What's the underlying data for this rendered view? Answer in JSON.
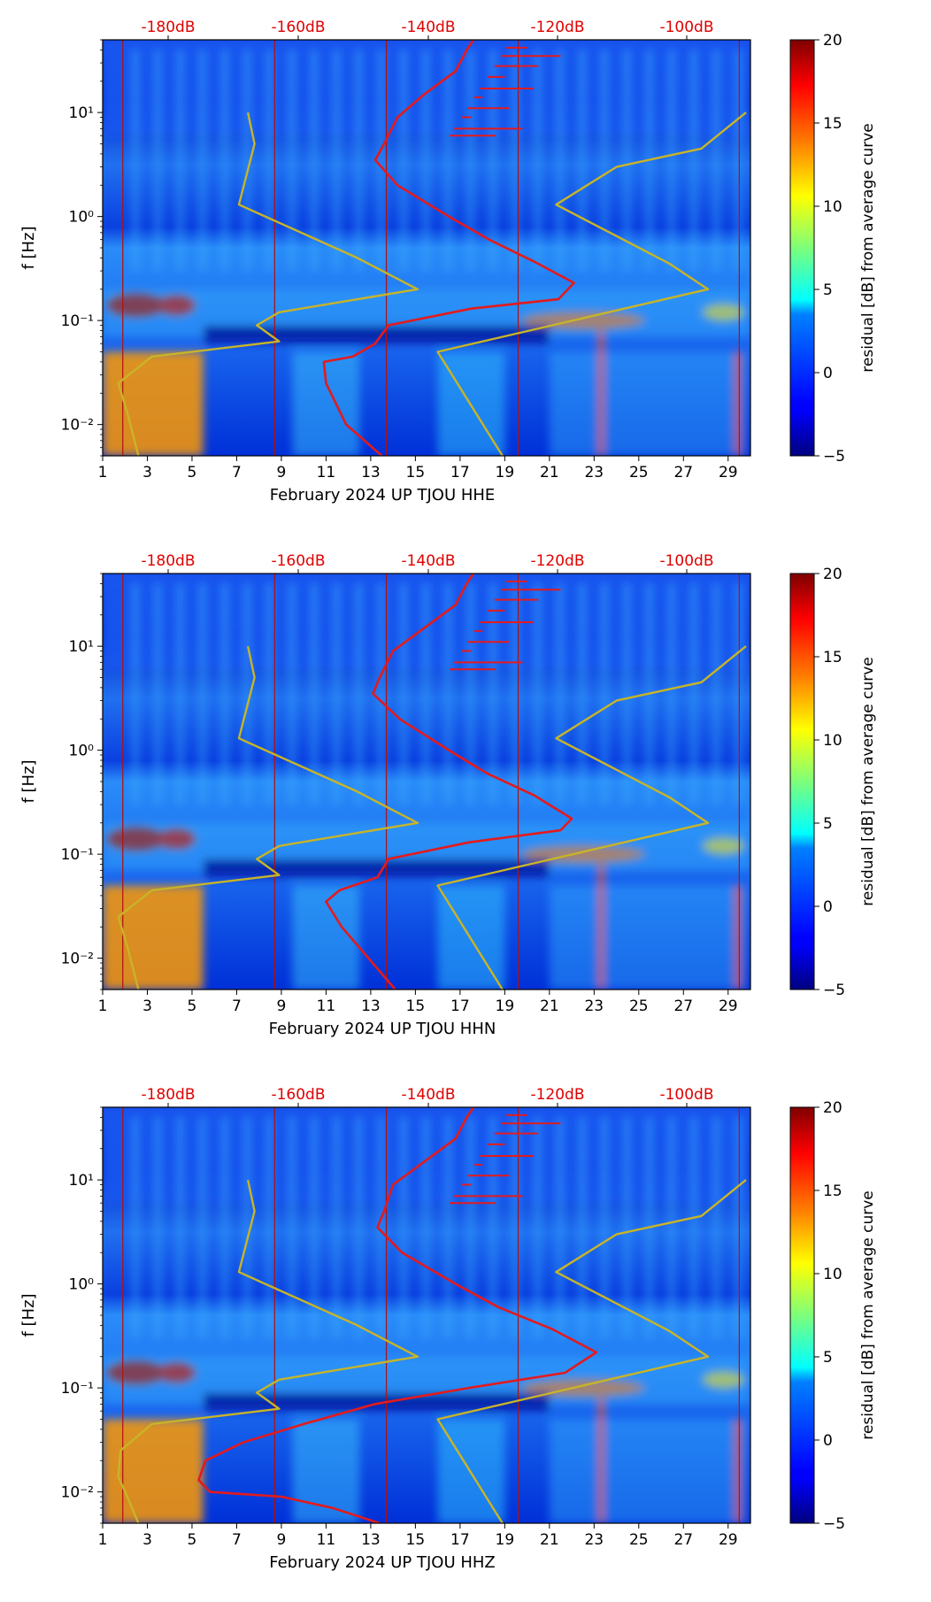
{
  "chart_data": [
    {
      "type": "heatmap",
      "title": "",
      "xlabel": "February 2024 UP TJOU  HHE",
      "ylabel": "f [Hz]",
      "xlim": [
        1,
        30
      ],
      "ylim_hz": [
        0.005,
        50
      ],
      "x_ticks": [
        "1",
        "3",
        "5",
        "7",
        "9",
        "11",
        "13",
        "15",
        "17",
        "19",
        "21",
        "23",
        "25",
        "27",
        "29"
      ],
      "y_ticks": [
        "10⁻²",
        "10⁻¹",
        "10⁰",
        "10¹"
      ],
      "top_ticks": [
        "-180dB",
        "-160dB",
        "-140dB",
        "-120dB",
        "-100dB"
      ],
      "colorbar": {
        "label": "residual [dB] from average curve",
        "ticks": [
          "20",
          "15",
          "10",
          "5",
          "0",
          "−5"
        ],
        "range": [
          -5,
          20
        ]
      },
      "red_vlines": [
        1.9,
        8.7,
        13.7,
        19.6,
        29.5
      ],
      "series": [
        {
          "name": "median PSD curve",
          "color": "#e41a1c",
          "points": [
            [
              13.5,
              0.005
            ],
            [
              11.9,
              0.01
            ],
            [
              11.0,
              0.025
            ],
            [
              10.9,
              0.04
            ],
            [
              12.2,
              0.045
            ],
            [
              13.2,
              0.06
            ],
            [
              13.8,
              0.09
            ],
            [
              17.5,
              0.13
            ],
            [
              21.4,
              0.16
            ],
            [
              22.1,
              0.23
            ],
            [
              20.3,
              0.37
            ],
            [
              18.3,
              0.6
            ],
            [
              16.5,
              1.0
            ],
            [
              14.2,
              2.0
            ],
            [
              13.2,
              3.5
            ],
            [
              13.6,
              5
            ],
            [
              14.2,
              9
            ],
            [
              15.4,
              15
            ],
            [
              16.8,
              25
            ],
            [
              17.3,
              40
            ],
            [
              17.6,
              50
            ]
          ]
        },
        {
          "name": "noise model curve (NLNM/NHNM)",
          "color": "#c8b428",
          "points": [
            [
              2.6,
              0.005
            ],
            [
              2.1,
              0.013
            ],
            [
              1.7,
              0.025
            ],
            [
              3.2,
              0.045
            ],
            [
              8.9,
              0.063
            ],
            [
              7.9,
              0.09
            ],
            [
              8.9,
              0.12
            ],
            [
              15.1,
              0.2
            ],
            [
              12.4,
              0.4
            ],
            [
              7.1,
              1.3
            ],
            [
              7.8,
              5
            ],
            [
              7.5,
              10
            ],
            [
              null,
              null
            ],
            [
              18.9,
              0.005
            ],
            [
              16.0,
              0.05
            ],
            [
              28.1,
              0.2
            ],
            [
              26.4,
              0.35
            ],
            [
              21.3,
              1.3
            ],
            [
              24.0,
              3
            ],
            [
              27.8,
              4.5
            ],
            [
              29.8,
              10
            ]
          ]
        }
      ]
    },
    {
      "type": "heatmap",
      "title": "",
      "xlabel": "February 2024 UP TJOU  HHN",
      "ylabel": "f [Hz]",
      "xlim": [
        1,
        30
      ],
      "ylim_hz": [
        0.005,
        50
      ],
      "x_ticks": [
        "1",
        "3",
        "5",
        "7",
        "9",
        "11",
        "13",
        "15",
        "17",
        "19",
        "21",
        "23",
        "25",
        "27",
        "29"
      ],
      "y_ticks": [
        "10⁻²",
        "10⁻¹",
        "10⁰",
        "10¹"
      ],
      "top_ticks": [
        "-180dB",
        "-160dB",
        "-140dB",
        "-120dB",
        "-100dB"
      ],
      "colorbar": {
        "label": "residual [dB] from average curve",
        "ticks": [
          "20",
          "15",
          "10",
          "5",
          "0",
          "−5"
        ],
        "range": [
          -5,
          20
        ]
      },
      "red_vlines": [
        1.9,
        8.7,
        13.7,
        19.6,
        29.5
      ],
      "series": [
        {
          "name": "median PSD curve",
          "color": "#e41a1c",
          "points": [
            [
              14.1,
              0.005
            ],
            [
              12.9,
              0.01
            ],
            [
              11.7,
              0.02
            ],
            [
              11.0,
              0.035
            ],
            [
              11.6,
              0.045
            ],
            [
              13.3,
              0.06
            ],
            [
              13.8,
              0.09
            ],
            [
              17.4,
              0.13
            ],
            [
              21.5,
              0.17
            ],
            [
              22.0,
              0.22
            ],
            [
              20.3,
              0.37
            ],
            [
              18.2,
              0.6
            ],
            [
              16.5,
              1.0
            ],
            [
              14.3,
              2.0
            ],
            [
              13.1,
              3.5
            ],
            [
              13.4,
              5
            ],
            [
              14.0,
              9
            ],
            [
              15.4,
              15
            ],
            [
              16.8,
              25
            ],
            [
              17.3,
              40
            ],
            [
              17.6,
              50
            ]
          ]
        },
        {
          "name": "noise model curve (NLNM/NHNM)",
          "color": "#c8b428",
          "points": [
            [
              2.6,
              0.005
            ],
            [
              2.1,
              0.013
            ],
            [
              1.7,
              0.025
            ],
            [
              3.2,
              0.045
            ],
            [
              8.9,
              0.063
            ],
            [
              7.9,
              0.09
            ],
            [
              8.9,
              0.12
            ],
            [
              15.1,
              0.2
            ],
            [
              12.4,
              0.4
            ],
            [
              7.1,
              1.3
            ],
            [
              7.8,
              5
            ],
            [
              7.5,
              10
            ],
            [
              null,
              null
            ],
            [
              18.9,
              0.005
            ],
            [
              16.0,
              0.05
            ],
            [
              28.1,
              0.2
            ],
            [
              26.4,
              0.35
            ],
            [
              21.3,
              1.3
            ],
            [
              24.0,
              3
            ],
            [
              27.8,
              4.5
            ],
            [
              29.8,
              10
            ]
          ]
        }
      ]
    },
    {
      "type": "heatmap",
      "title": "",
      "xlabel": "February 2024 UP TJOU  HHZ",
      "ylabel": "f [Hz]",
      "xlim": [
        1,
        30
      ],
      "ylim_hz": [
        0.005,
        50
      ],
      "x_ticks": [
        "1",
        "3",
        "5",
        "7",
        "9",
        "11",
        "13",
        "15",
        "17",
        "19",
        "21",
        "23",
        "25",
        "27",
        "29"
      ],
      "y_ticks": [
        "10⁻²",
        "10⁻¹",
        "10⁰",
        "10¹"
      ],
      "top_ticks": [
        "-180dB",
        "-160dB",
        "-140dB",
        "-120dB",
        "-100dB"
      ],
      "colorbar": {
        "label": "residual [dB] from average curve",
        "ticks": [
          "20",
          "15",
          "10",
          "5",
          "0",
          "−5"
        ],
        "range": [
          -5,
          20
        ]
      },
      "red_vlines": [
        1.9,
        8.7,
        13.7,
        19.6,
        29.5
      ],
      "series": [
        {
          "name": "median PSD curve",
          "color": "#e41a1c",
          "points": [
            [
              13.4,
              0.005
            ],
            [
              11.3,
              0.007
            ],
            [
              9.0,
              0.009
            ],
            [
              5.8,
              0.01
            ],
            [
              5.3,
              0.013
            ],
            [
              5.6,
              0.02
            ],
            [
              7.3,
              0.03
            ],
            [
              10.0,
              0.045
            ],
            [
              13.2,
              0.07
            ],
            [
              17.4,
              0.1
            ],
            [
              21.7,
              0.14
            ],
            [
              23.1,
              0.22
            ],
            [
              21.1,
              0.37
            ],
            [
              18.7,
              0.6
            ],
            [
              16.8,
              1.0
            ],
            [
              14.4,
              2.0
            ],
            [
              13.3,
              3.5
            ],
            [
              13.6,
              5
            ],
            [
              14.0,
              9
            ],
            [
              15.4,
              15
            ],
            [
              16.8,
              25
            ],
            [
              17.3,
              40
            ],
            [
              17.6,
              50
            ]
          ]
        },
        {
          "name": "noise model curve (NLNM/NHNM)",
          "color": "#c8b428",
          "points": [
            [
              2.6,
              0.005
            ],
            [
              2.1,
              0.009
            ],
            [
              1.7,
              0.014
            ],
            [
              1.8,
              0.025
            ],
            [
              3.2,
              0.045
            ],
            [
              8.9,
              0.063
            ],
            [
              7.9,
              0.09
            ],
            [
              8.9,
              0.12
            ],
            [
              15.1,
              0.2
            ],
            [
              12.4,
              0.4
            ],
            [
              7.1,
              1.3
            ],
            [
              7.8,
              5
            ],
            [
              7.5,
              10
            ],
            [
              null,
              null
            ],
            [
              18.9,
              0.005
            ],
            [
              16.0,
              0.05
            ],
            [
              28.1,
              0.2
            ],
            [
              26.4,
              0.35
            ],
            [
              21.3,
              1.3
            ],
            [
              24.0,
              3
            ],
            [
              27.8,
              4.5
            ],
            [
              29.8,
              10
            ]
          ]
        }
      ]
    }
  ]
}
